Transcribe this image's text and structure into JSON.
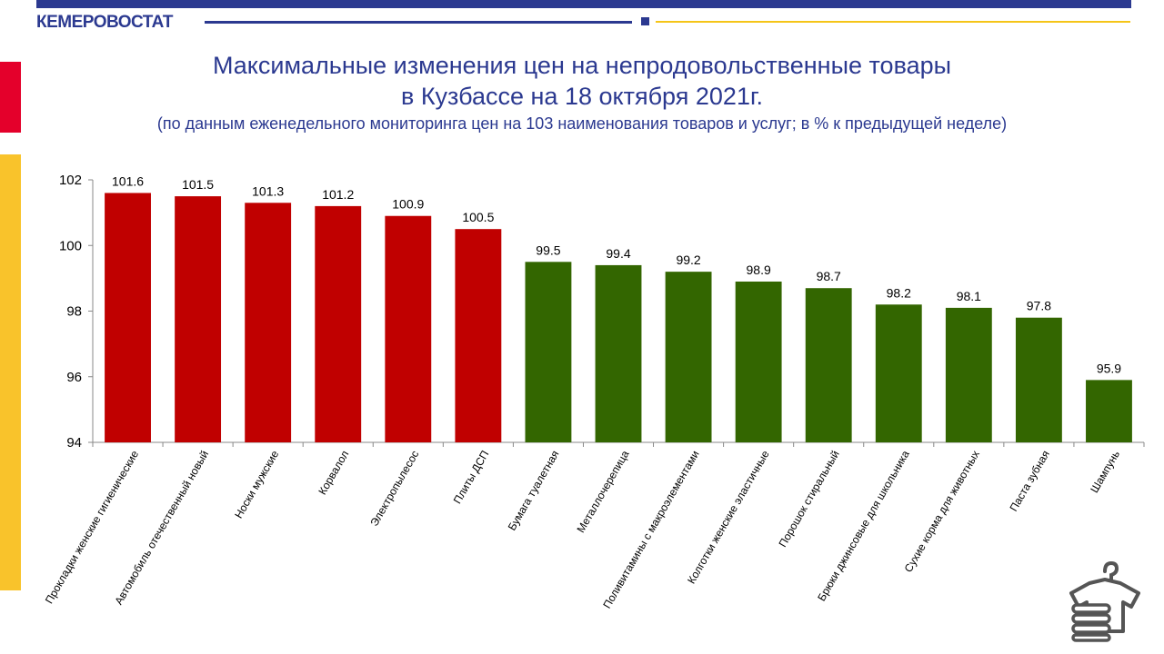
{
  "header": {
    "brand": "КЕМЕРОВОСТАТ",
    "title_line1": "Максимальные  изменения цен на непродовольственные  товары",
    "title_line2": "в Кузбассе на 18 октября 2021г.",
    "subtitle": "(по данным  еженедельного  мониторинга  цен на 103 наименования  товаров и услуг; в % к предыдущей  неделе)"
  },
  "colors": {
    "brand_blue": "#2b3990",
    "accent_yellow": "#f9c32b",
    "accent_red": "#e4002b",
    "increase_bar": "#c00000",
    "decrease_bar": "#336600"
  },
  "chart_data": {
    "type": "bar",
    "categories": [
      "Прокладки женские гигиенические",
      "Автомобиль  отечественный  новый",
      "Носки мужские",
      "Корвалол",
      "Электропылесос",
      "Плиты ДСП",
      "Бумага туалетная",
      "Металлочерепица",
      "Поливитамины  с макроэлементами",
      "Колготки женские эластичные",
      "Порошок стиральный",
      "Брюки джинсовые для школьника",
      "Сухие корма для животных",
      "Паста зубная",
      "Шампунь"
    ],
    "values": [
      101.6,
      101.5,
      101.3,
      101.2,
      100.9,
      100.5,
      99.5,
      99.4,
      99.2,
      98.9,
      98.7,
      98.2,
      98.1,
      97.8,
      95.9
    ],
    "value_labels": [
      "101.6",
      "101.5",
      "101.3",
      "101.2",
      "100.9",
      "100.5",
      "99.5",
      "99.4",
      "99.2",
      "98.9",
      "98.7",
      "98.2",
      "98.1",
      "97.8",
      "95.9"
    ],
    "bar_colors": [
      "#c00000",
      "#c00000",
      "#c00000",
      "#c00000",
      "#c00000",
      "#c00000",
      "#336600",
      "#336600",
      "#336600",
      "#336600",
      "#336600",
      "#336600",
      "#336600",
      "#336600",
      "#336600"
    ],
    "ylim": [
      94,
      102
    ],
    "yticks": [
      "94",
      "96",
      "98",
      "100",
      "102"
    ],
    "grid": false,
    "legend": "none"
  },
  "icon": {
    "name": "clothes-hanger-shirt-icon"
  }
}
